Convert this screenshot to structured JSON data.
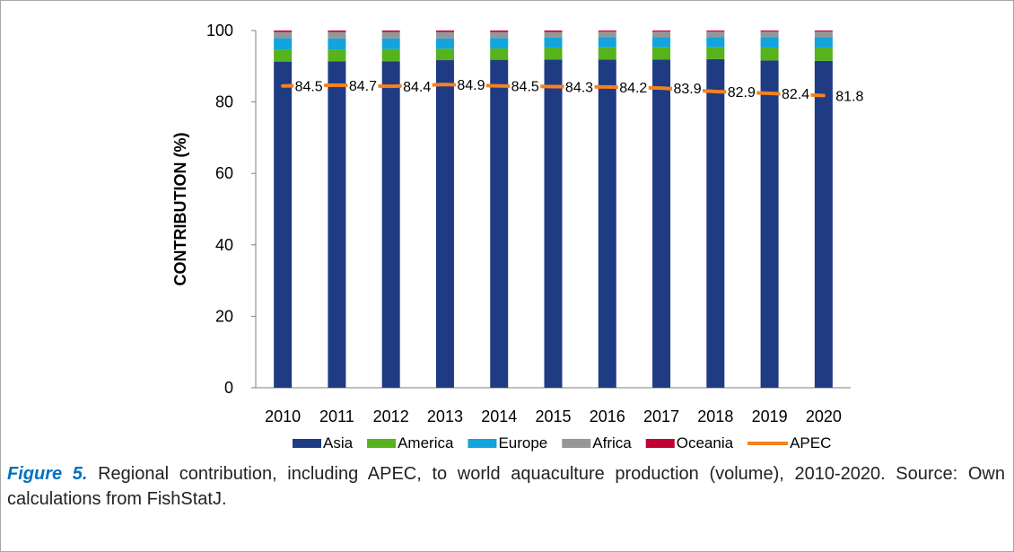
{
  "chart_data": {
    "type": "bar",
    "stacked": true,
    "categories": [
      "2010",
      "2011",
      "2012",
      "2013",
      "2014",
      "2015",
      "2016",
      "2017",
      "2018",
      "2019",
      "2020"
    ],
    "series": [
      {
        "name": "Asia",
        "color": "#1f3b83",
        "values": [
          91.3,
          91.4,
          91.4,
          91.7,
          91.8,
          91.9,
          91.9,
          91.9,
          92.0,
          91.6,
          91.5
        ]
      },
      {
        "name": "America",
        "color": "#56b21d",
        "values": [
          3.4,
          3.3,
          3.4,
          3.2,
          3.2,
          3.3,
          3.4,
          3.4,
          3.3,
          3.6,
          3.7
        ]
      },
      {
        "name": "Europe",
        "color": "#12a4dc",
        "values": [
          3.2,
          3.1,
          3.0,
          2.9,
          2.9,
          2.8,
          2.8,
          2.8,
          2.8,
          2.9,
          2.9
        ]
      },
      {
        "name": "Africa",
        "color": "#969696",
        "values": [
          1.7,
          1.8,
          1.8,
          1.8,
          1.7,
          1.6,
          1.6,
          1.6,
          1.6,
          1.6,
          1.6
        ]
      },
      {
        "name": "Oceania",
        "color": "#c00030",
        "values": [
          0.4,
          0.4,
          0.4,
          0.4,
          0.4,
          0.4,
          0.3,
          0.3,
          0.3,
          0.3,
          0.3
        ]
      }
    ],
    "line_series": {
      "name": "APEC",
      "color": "#f58220",
      "values": [
        84.5,
        84.7,
        84.4,
        84.9,
        84.5,
        84.3,
        84.2,
        83.9,
        82.9,
        82.4,
        81.8
      ]
    },
    "ylabel": "CONTRIBUTION  (%)",
    "xlabel": "",
    "ylim": [
      0,
      100
    ],
    "yticks": [
      0,
      20,
      40,
      60,
      80,
      100
    ],
    "grid": false,
    "legend_position": "bottom"
  },
  "caption": {
    "label": "Figure 5.",
    "text": " Regional contribution, including APEC, to world aquaculture production (volume), 2010-2020. Source: Own calculations from FishStatJ."
  }
}
